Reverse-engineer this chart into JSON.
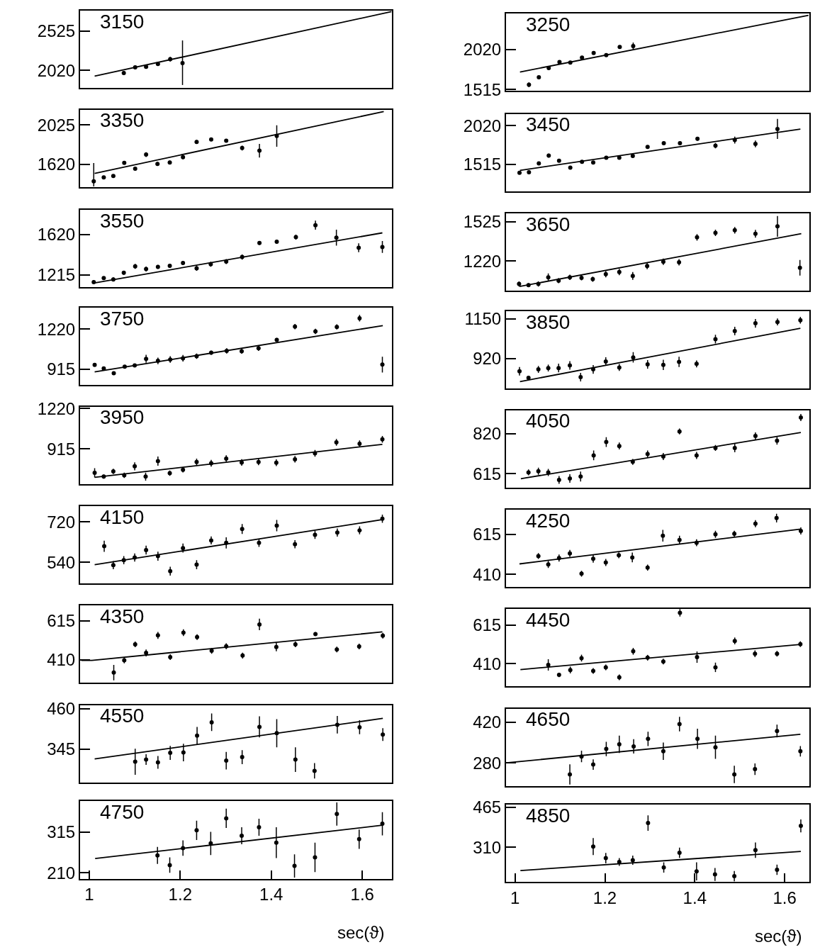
{
  "chart_data": [
    {
      "type": "scatter",
      "annotations": [
        "3150"
      ],
      "tick_labels": "y",
      "xlim": [
        0.98,
        1.665
      ],
      "ylim": [
        1795,
        2785
      ],
      "yticks": [
        2020,
        2525
      ],
      "x": [
        1.076,
        1.101,
        1.125,
        1.151,
        1.178,
        1.205
      ],
      "series": [
        {
          "marker": "circle",
          "color": "#000000",
          "values": [
            1987,
            2060,
            2066,
            2103,
            2163,
            2113
          ],
          "errors": [
            25,
            20,
            20,
            20,
            30,
            [
              1833,
              2403
            ]
          ]
        },
        {
          "type": "line",
          "color": "#000000",
          "x": [
            1.012,
            1.664
          ],
          "values": [
            1947,
            2771
          ]
        }
      ]
    },
    {
      "type": "scatter",
      "annotations": [
        "3250"
      ],
      "tick_labels": "y",
      "xlim": [
        0.98,
        1.655
      ],
      "ylim": [
        1498,
        2480
      ],
      "yticks": [
        1515,
        2020
      ],
      "x": [
        1.031,
        1.053,
        1.075,
        1.099,
        1.123,
        1.149,
        1.175,
        1.203,
        1.233,
        1.263
      ],
      "series": [
        {
          "marker": "circle",
          "color": "#000000",
          "values": [
            1574,
            1670,
            1786,
            1862,
            1855,
            1918,
            1977,
            1951,
            2053,
            2066
          ],
          "errors": [
            30,
            15,
            15,
            15,
            20,
            15,
            20,
            15,
            20,
            45
          ]
        },
        {
          "type": "line",
          "color": "#000000",
          "x": [
            1.011,
            1.653
          ],
          "values": [
            1736,
            2456
          ]
        }
      ]
    },
    {
      "type": "scatter",
      "annotations": [
        "3350"
      ],
      "tick_labels": "y",
      "xlim": [
        0.98,
        1.665
      ],
      "ylim": [
        1385,
        2185
      ],
      "yticks": [
        1620,
        2025
      ],
      "x": [
        1.01,
        1.032,
        1.053,
        1.077,
        1.101,
        1.125,
        1.15,
        1.177,
        1.206,
        1.236,
        1.268,
        1.301,
        1.336,
        1.374,
        1.412
      ],
      "series": [
        {
          "marker": "circle",
          "color": "#000000",
          "values": [
            1444,
            1485,
            1498,
            1634,
            1574,
            1720,
            1623,
            1639,
            1693,
            1850,
            1877,
            1864,
            1788,
            1760,
            1912
          ],
          "errors": [
            [
              1390,
              1633
            ],
            10,
            15,
            15,
            15,
            25,
            20,
            20,
            20,
            20,
            15,
            15,
            25,
            70,
            110
          ]
        },
        {
          "type": "line",
          "color": "#000000",
          "x": [
            1.012,
            1.647
          ],
          "values": [
            1526,
            2165
          ]
        }
      ]
    },
    {
      "type": "scatter",
      "annotations": [
        "3450"
      ],
      "tick_labels": "y",
      "xlim": [
        0.98,
        1.655
      ],
      "ylim": [
        1165,
        2175
      ],
      "yticks": [
        1515,
        2020
      ],
      "x": [
        1.01,
        1.031,
        1.053,
        1.075,
        1.098,
        1.123,
        1.149,
        1.174,
        1.203,
        1.232,
        1.262,
        1.295,
        1.331,
        1.367,
        1.406,
        1.446,
        1.489,
        1.535,
        1.584
      ],
      "series": [
        {
          "marker": "circle",
          "color": "#000000",
          "values": [
            1404,
            1411,
            1528,
            1629,
            1562,
            1472,
            1549,
            1539,
            1602,
            1602,
            1625,
            1742,
            1792,
            1792,
            1849,
            1759,
            1832,
            1782,
            1977
          ],
          "errors": [
            20,
            15,
            20,
            25,
            20,
            20,
            15,
            20,
            15,
            15,
            20,
            15,
            15,
            15,
            25,
            35,
            45,
            45,
            130
          ]
        },
        {
          "type": "line",
          "color": "#000000",
          "x": [
            1.011,
            1.635
          ],
          "values": [
            1437,
            1976
          ]
        }
      ]
    },
    {
      "type": "scatter",
      "annotations": [
        "3550"
      ],
      "tick_labels": "y",
      "xlim": [
        0.98,
        1.665
      ],
      "ylim": [
        1090,
        1865
      ],
      "yticks": [
        1215,
        1620
      ],
      "x": [
        1.01,
        1.032,
        1.053,
        1.076,
        1.101,
        1.125,
        1.151,
        1.177,
        1.206,
        1.236,
        1.267,
        1.301,
        1.336,
        1.374,
        1.412,
        1.454,
        1.497,
        1.543,
        1.592,
        1.644
      ],
      "series": [
        {
          "marker": "circle",
          "color": "#000000",
          "values": [
            1143,
            1183,
            1170,
            1236,
            1300,
            1274,
            1295,
            1306,
            1335,
            1282,
            1322,
            1349,
            1394,
            1535,
            1548,
            1593,
            1713,
            1588,
            1487,
            1495
          ],
          "errors": [
            20,
            15,
            20,
            20,
            25,
            25,
            20,
            20,
            20,
            25,
            25,
            25,
            25,
            20,
            20,
            25,
            45,
            80,
            45,
            60
          ]
        },
        {
          "type": "line",
          "color": "#000000",
          "x": [
            1.012,
            1.644
          ],
          "values": [
            1135,
            1636
          ]
        }
      ]
    },
    {
      "type": "scatter",
      "annotations": [
        "3650"
      ],
      "tick_labels": "y",
      "xlim": [
        0.98,
        1.655
      ],
      "ylim": [
        990,
        1590
      ],
      "yticks": [
        1220,
        1525
      ],
      "x": [
        1.009,
        1.03,
        1.052,
        1.074,
        1.097,
        1.122,
        1.148,
        1.173,
        1.202,
        1.232,
        1.262,
        1.294,
        1.33,
        1.365,
        1.405,
        1.446,
        1.489,
        1.535,
        1.584,
        1.634
      ],
      "series": [
        {
          "marker": "circle",
          "color": "#000000",
          "values": [
            1044,
            1034,
            1044,
            1095,
            1069,
            1095,
            1091,
            1081,
            1120,
            1136,
            1106,
            1183,
            1216,
            1212,
            1405,
            1440,
            1460,
            1433,
            1490,
            1169
          ],
          "errors": [
            20,
            15,
            20,
            30,
            20,
            20,
            20,
            20,
            25,
            25,
            30,
            25,
            25,
            25,
            25,
            25,
            25,
            30,
            80,
            60
          ]
        },
        {
          "type": "line",
          "color": "#000000",
          "x": [
            1.01,
            1.637
          ],
          "values": [
            1024,
            1433
          ]
        }
      ]
    },
    {
      "type": "scatter",
      "annotations": [
        "3750"
      ],
      "tick_labels": "y",
      "xlim": [
        0.98,
        1.665
      ],
      "ylim": [
        795,
        1385
      ],
      "yticks": [
        915,
        1220
      ],
      "x": [
        1.012,
        1.032,
        1.054,
        1.078,
        1.1,
        1.125,
        1.151,
        1.178,
        1.206,
        1.236,
        1.268,
        1.302,
        1.335,
        1.372,
        1.412,
        1.452,
        1.497,
        1.544,
        1.594,
        1.644
      ],
      "series": [
        {
          "marker": "circle",
          "color": "#000000",
          "values": [
            949,
            921,
            885,
            935,
            945,
            995,
            979,
            989,
            999,
            1015,
            1041,
            1055,
            1053,
            1075,
            1139,
            1240,
            1204,
            1238,
            1304,
            951
          ],
          "errors": [
            10,
            10,
            12,
            12,
            12,
            30,
            25,
            25,
            25,
            20,
            15,
            20,
            20,
            20,
            15,
            20,
            20,
            20,
            25,
            60
          ]
        },
        {
          "type": "line",
          "color": "#000000",
          "x": [
            1.012,
            1.645
          ],
          "values": [
            895,
            1248
          ]
        }
      ]
    },
    {
      "type": "scatter",
      "annotations": [
        "3850"
      ],
      "tick_labels": "y",
      "xlim": [
        0.98,
        1.655
      ],
      "ylim": [
        745,
        1195
      ],
      "yticks": [
        920,
        1150
      ],
      "x": [
        1.01,
        1.03,
        1.052,
        1.074,
        1.097,
        1.122,
        1.146,
        1.174,
        1.202,
        1.232,
        1.263,
        1.295,
        1.33,
        1.365,
        1.404,
        1.446,
        1.489,
        1.535,
        1.584,
        1.635
      ],
      "series": [
        {
          "marker": "circle",
          "color": "#000000",
          "values": [
            845,
            807,
            856,
            864,
            864,
            879,
            811,
            856,
            902,
            867,
            926,
            885,
            882,
            900,
            888,
            1032,
            1079,
            1124,
            1132,
            1142
          ],
          "errors": [
            25,
            12,
            20,
            20,
            25,
            25,
            25,
            25,
            25,
            20,
            30,
            25,
            30,
            30,
            20,
            25,
            25,
            25,
            20,
            20
          ]
        },
        {
          "type": "line",
          "color": "#000000",
          "x": [
            1.011,
            1.635
          ],
          "values": [
            785,
            1095
          ]
        }
      ]
    },
    {
      "type": "scatter",
      "annotations": [
        "3950"
      ],
      "tick_labels": "y",
      "xlim": [
        0.98,
        1.665
      ],
      "ylim": [
        650,
        1235
      ],
      "yticks": [
        915,
        1220
      ],
      "x": [
        1.012,
        1.032,
        1.053,
        1.077,
        1.1,
        1.124,
        1.151,
        1.177,
        1.206,
        1.236,
        1.268,
        1.301,
        1.335,
        1.372,
        1.411,
        1.452,
        1.496,
        1.543,
        1.594,
        1.644
      ],
      "series": [
        {
          "marker": "circle",
          "color": "#000000",
          "values": [
            735,
            706,
            745,
            716,
            784,
            706,
            823,
            732,
            758,
            817,
            807,
            842,
            813,
            817,
            811,
            837,
            882,
            965,
            955,
            988
          ],
          "errors": [
            35,
            15,
            20,
            20,
            30,
            30,
            35,
            20,
            20,
            25,
            25,
            25,
            25,
            25,
            25,
            25,
            25,
            25,
            25,
            25
          ]
        },
        {
          "type": "line",
          "color": "#000000",
          "x": [
            1.012,
            1.644
          ],
          "values": [
            700,
            950
          ]
        }
      ]
    },
    {
      "type": "scatter",
      "annotations": [
        "4050"
      ],
      "tick_labels": "y",
      "xlim": [
        0.98,
        1.655
      ],
      "ylim": [
        545,
        940
      ],
      "yticks": [
        615,
        820
      ],
      "x": [
        1.03,
        1.052,
        1.074,
        1.098,
        1.122,
        1.146,
        1.175,
        1.203,
        1.232,
        1.262,
        1.295,
        1.33,
        1.366,
        1.404,
        1.446,
        1.489,
        1.535,
        1.583,
        1.636
      ],
      "series": [
        {
          "marker": "circle",
          "color": "#000000",
          "values": [
            622,
            628,
            622,
            584,
            591,
            601,
            709,
            777,
            757,
            676,
            716,
            703,
            831,
            709,
            747,
            747,
            808,
            784,
            902
          ],
          "errors": [
            15,
            18,
            18,
            20,
            22,
            25,
            25,
            25,
            18,
            15,
            18,
            18,
            15,
            18,
            15,
            22,
            18,
            20,
            18
          ]
        },
        {
          "type": "line",
          "color": "#000000",
          "x": [
            1.013,
            1.024,
            1.636
          ],
          "values": [
            590,
            594,
            826
          ]
        }
      ]
    },
    {
      "type": "scatter",
      "annotations": [
        "4150"
      ],
      "tick_labels": "y",
      "xlim": [
        0.98,
        1.665
      ],
      "ylim": [
        445,
        790
      ],
      "yticks": [
        540,
        720
      ],
      "x": [
        1.033,
        1.053,
        1.076,
        1.1,
        1.125,
        1.151,
        1.178,
        1.206,
        1.236,
        1.268,
        1.301,
        1.336,
        1.373,
        1.412,
        1.452,
        1.496,
        1.545,
        1.594,
        1.644
      ],
      "series": [
        {
          "marker": "circle",
          "color": "#000000",
          "values": [
            612,
            528,
            550,
            562,
            595,
            568,
            501,
            604,
            530,
            638,
            627,
            689,
            627,
            704,
            621,
            663,
            673,
            683,
            735
          ],
          "errors": [
            25,
            18,
            18,
            18,
            20,
            20,
            20,
            20,
            20,
            18,
            25,
            22,
            18,
            25,
            18,
            18,
            18,
            18,
            18
          ]
        },
        {
          "type": "line",
          "color": "#000000",
          "x": [
            1.012,
            1.645
          ],
          "values": [
            530,
            731
          ]
        }
      ]
    },
    {
      "type": "scatter",
      "annotations": [
        "4250"
      ],
      "tick_labels": "y",
      "xlim": [
        0.98,
        1.655
      ],
      "ylim": [
        345,
        740
      ],
      "yticks": [
        410,
        615
      ],
      "x": [
        1.052,
        1.074,
        1.098,
        1.122,
        1.148,
        1.174,
        1.202,
        1.231,
        1.261,
        1.295,
        1.329,
        1.366,
        1.404,
        1.446,
        1.488,
        1.535,
        1.582,
        1.636
      ],
      "series": [
        {
          "marker": "circle",
          "color": "#000000",
          "values": [
            504,
            461,
            494,
            517,
            414,
            490,
            471,
            508,
            497,
            445,
            608,
            586,
            572,
            615,
            618,
            669,
            698,
            632
          ],
          "errors": [
            15,
            18,
            18,
            18,
            15,
            20,
            18,
            15,
            25,
            15,
            30,
            22,
            18,
            18,
            15,
            18,
            22,
            18
          ]
        },
        {
          "type": "line",
          "color": "#000000",
          "x": [
            1.01,
            1.636
          ],
          "values": [
            464,
            642
          ]
        }
      ]
    },
    {
      "type": "scatter",
      "annotations": [
        "4350"
      ],
      "tick_labels": "y",
      "xlim": [
        0.98,
        1.665
      ],
      "ylim": [
        290,
        695
      ],
      "yticks": [
        410,
        615
      ],
      "x": [
        1.054,
        1.077,
        1.101,
        1.125,
        1.151,
        1.178,
        1.207,
        1.237,
        1.269,
        1.301,
        1.337,
        1.374,
        1.411,
        1.453,
        1.497,
        1.544,
        1.593,
        1.645
      ],
      "series": [
        {
          "marker": "circle",
          "color": "#000000",
          "values": [
            343,
            407,
            491,
            446,
            538,
            424,
            552,
            529,
            457,
            481,
            432,
            595,
            477,
            491,
            545,
            464,
            480,
            536
          ],
          "errors": [
            40,
            15,
            15,
            18,
            18,
            15,
            18,
            15,
            15,
            15,
            15,
            30,
            22,
            15,
            10,
            15,
            15,
            15
          ]
        },
        {
          "type": "line",
          "color": "#000000",
          "x": [
            0.983,
            1.006,
            1.644
          ],
          "values": [
            407,
            407,
            556
          ]
        }
      ]
    },
    {
      "type": "scatter",
      "annotations": [
        "4450"
      ],
      "tick_labels": "y",
      "xlim": [
        0.98,
        1.655
      ],
      "ylim": [
        290,
        700
      ],
      "yticks": [
        410,
        615
      ],
      "x": [
        1.074,
        1.098,
        1.123,
        1.148,
        1.174,
        1.202,
        1.232,
        1.263,
        1.295,
        1.33,
        1.367,
        1.405,
        1.446,
        1.489,
        1.534,
        1.583,
        1.635
      ],
      "series": [
        {
          "marker": "circle",
          "color": "#000000",
          "values": [
            403,
            350,
            376,
            439,
            371,
            390,
            337,
            475,
            441,
            421,
            679,
            444,
            390,
            530,
            462,
            462,
            513
          ],
          "errors": [
            30,
            12,
            18,
            18,
            15,
            15,
            15,
            18,
            15,
            15,
            20,
            30,
            25,
            18,
            18,
            15,
            15
          ]
        },
        {
          "type": "line",
          "color": "#000000",
          "x": [
            1.012,
            1.635
          ],
          "values": [
            378,
            511
          ]
        }
      ]
    },
    {
      "type": "scatter",
      "annotations": [
        "4550"
      ],
      "tick_labels": "y",
      "xlim": [
        0.98,
        1.665
      ],
      "ylim": [
        250,
        470
      ],
      "yticks": [
        345,
        460
      ],
      "x": [
        1.101,
        1.125,
        1.151,
        1.178,
        1.207,
        1.237,
        1.269,
        1.301,
        1.336,
        1.374,
        1.412,
        1.453,
        1.495,
        1.545,
        1.594,
        1.645
      ],
      "series": [
        {
          "marker": "circle",
          "color": "#000000",
          "values": [
            309,
            315,
            307,
            334,
            335,
            383,
            421,
            312,
            322,
            408,
            390,
            315,
            283,
            414,
            407,
            386
          ],
          "errors": [
            37,
            15,
            18,
            20,
            25,
            25,
            25,
            25,
            20,
            30,
            40,
            35,
            22,
            25,
            20,
            18
          ]
        },
        {
          "type": "line",
          "color": "#000000",
          "x": [
            1.012,
            1.645
          ],
          "values": [
            317,
            432
          ]
        }
      ]
    },
    {
      "type": "scatter",
      "annotations": [
        "4650"
      ],
      "tick_labels": "y",
      "xlim": [
        0.98,
        1.655
      ],
      "ylim": [
        200,
        468
      ],
      "yticks": [
        280,
        420
      ],
      "x": [
        1.122,
        1.148,
        1.174,
        1.203,
        1.232,
        1.264,
        1.296,
        1.33,
        1.366,
        1.406,
        1.446,
        1.488,
        1.534,
        1.583,
        1.635
      ],
      "series": [
        {
          "marker": "circle",
          "color": "#000000",
          "values": [
            240,
            302,
            274,
            328,
            344,
            337,
            363,
            320,
            414,
            363,
            334,
            240,
            258,
            390,
            320
          ],
          "errors": [
            35,
            20,
            18,
            25,
            30,
            25,
            25,
            30,
            25,
            35,
            40,
            30,
            20,
            22,
            18
          ]
        },
        {
          "type": "line",
          "color": "#000000",
          "x": [
            0.981,
            1.635
          ],
          "values": [
            280,
            379
          ]
        }
      ]
    },
    {
      "type": "scatter",
      "annotations": [
        "4750"
      ],
      "xlabel": "sec(ϑ)",
      "xlim": [
        0.98,
        1.665
      ],
      "xticks": [
        1,
        1.2,
        1.4,
        1.6
      ],
      "ylim": [
        195,
        395
      ],
      "yticks": [
        210,
        315
      ],
      "x": [
        1.15,
        1.177,
        1.206,
        1.236,
        1.267,
        1.301,
        1.335,
        1.373,
        1.411,
        1.451,
        1.496,
        1.544,
        1.593,
        1.644
      ],
      "series": [
        {
          "marker": "circle",
          "color": "#000000",
          "values": [
            255,
            230,
            274,
            320,
            286,
            351,
            306,
            328,
            288,
            228,
            250,
            362,
            297,
            337
          ],
          "errors": [
            22,
            20,
            20,
            25,
            30,
            25,
            22,
            22,
            40,
            30,
            38,
            30,
            25,
            30
          ]
        },
        {
          "type": "line",
          "color": "#000000",
          "x": [
            1.013,
            1.644
          ],
          "values": [
            247,
            333
          ]
        }
      ]
    },
    {
      "type": "scatter",
      "annotations": [
        "4850"
      ],
      "xlabel": "sec(ϑ)",
      "xlim": [
        0.98,
        1.655
      ],
      "xticks": [
        1,
        1.2,
        1.4,
        1.6
      ],
      "ylim": [
        175,
        475
      ],
      "yticks": [
        310,
        465
      ],
      "x": [
        1.174,
        1.202,
        1.232,
        1.262,
        1.296,
        1.331,
        1.366,
        1.404,
        1.445,
        1.488,
        1.535,
        1.583,
        1.636
      ],
      "series": [
        {
          "marker": "circle",
          "color": "#000000",
          "values": [
            313,
            268,
            253,
            260,
            404,
            232,
            289,
            217,
            205,
            198,
            299,
            223,
            393
          ],
          "errors": [
            33,
            20,
            15,
            18,
            30,
            20,
            20,
            35,
            25,
            20,
            30,
            20,
            25
          ]
        },
        {
          "type": "line",
          "color": "#000000",
          "x": [
            1.012,
            1.636
          ],
          "values": [
            220,
            294
          ]
        }
      ]
    }
  ]
}
